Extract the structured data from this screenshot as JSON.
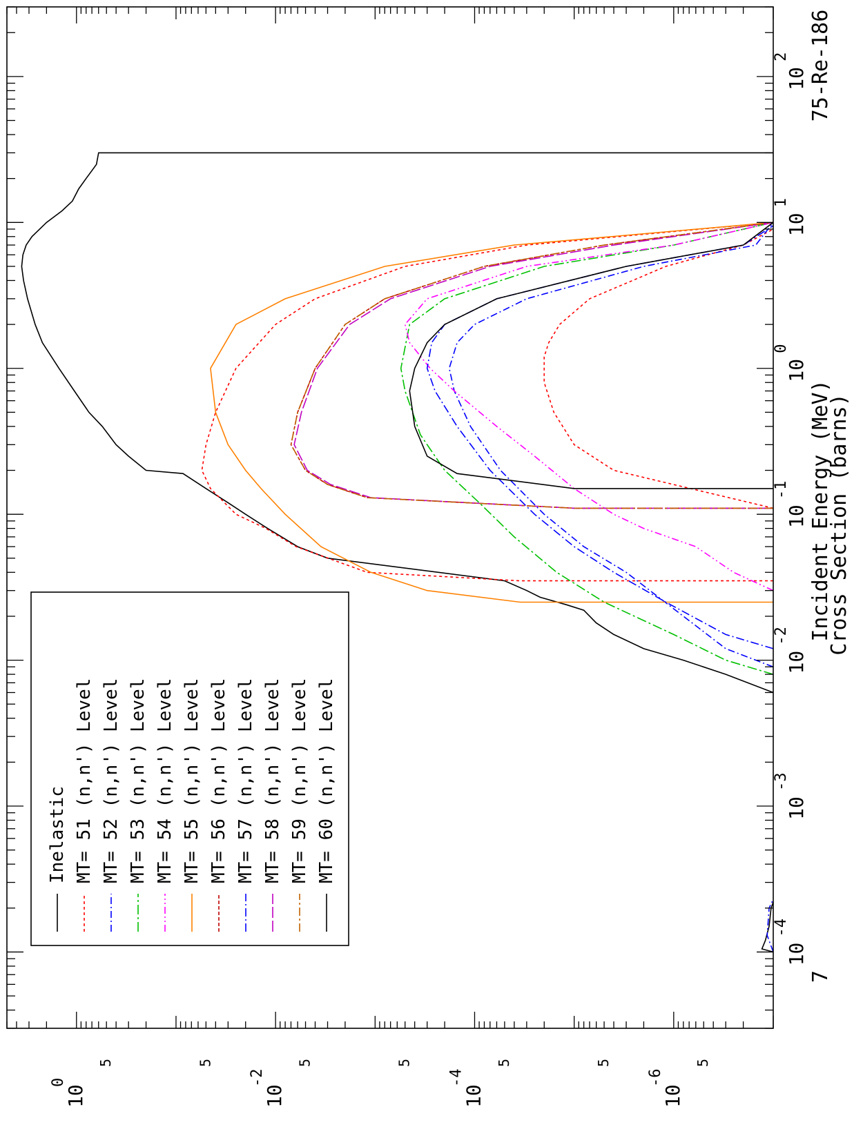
{
  "chart_data": {
    "type": "line",
    "title": "75-Re-186",
    "page_number": "7",
    "xlabel": "Incident Energy (MeV)",
    "ylabel": "Cross Section (barns)",
    "x_scale": "log",
    "y_scale": "log",
    "xlim": [
      3e-05,
      300
    ],
    "ylim": [
      1e-07,
      5
    ],
    "x_ticks": [
      {
        "value": 0.0001,
        "base": "10",
        "exp": "-4"
      },
      {
        "value": 0.001,
        "base": "10",
        "exp": "-3"
      },
      {
        "value": 0.01,
        "base": "10",
        "exp": "-2"
      },
      {
        "value": 0.1,
        "base": "10",
        "exp": "-1"
      },
      {
        "value": 1,
        "base": "10",
        "exp": "0"
      },
      {
        "value": 10,
        "base": "10",
        "exp": "1"
      },
      {
        "value": 100,
        "base": "10",
        "exp": "2"
      }
    ],
    "y_ticks": [
      {
        "value": 1,
        "base": "10",
        "exp": "0"
      },
      {
        "value": 0.01,
        "base": "10",
        "exp": "-2"
      },
      {
        "value": 0.0001,
        "base": "10",
        "exp": "-4"
      },
      {
        "value": 1e-06,
        "base": "10",
        "exp": "-6"
      }
    ],
    "y_minor_label": "5",
    "y_minor_label_values": [
      0.5,
      0.05,
      0.005,
      0.0005,
      5e-05,
      5e-06,
      5e-07
    ],
    "legend": {
      "placement": "top-left"
    },
    "series": [
      {
        "name": "Inelastic",
        "color": "#000000",
        "dash": "solid",
        "points": [
          [
            0.0001,
            1e-07
          ],
          [
            0.000105,
            1.3e-07
          ],
          [
            0.00012,
            1.2e-07
          ],
          [
            0.00015,
            1.1e-07
          ],
          [
            0.0002,
            1.05e-07
          ],
          [
            0.00022,
            1e-07
          ],
          null,
          [
            0.006,
            1e-07
          ],
          [
            0.008,
            3e-07
          ],
          [
            0.01,
            8e-07
          ],
          [
            0.012,
            2e-06
          ],
          [
            0.015,
            4e-06
          ],
          [
            0.018,
            6e-06
          ],
          [
            0.022,
            8e-06
          ],
          [
            0.024,
            1.2e-05
          ],
          [
            0.027,
            2.2e-05
          ],
          [
            0.03,
            3e-05
          ],
          [
            0.035,
            5e-05
          ],
          [
            0.05,
            0.003
          ],
          [
            0.06,
            0.006
          ],
          [
            0.08,
            0.012
          ],
          [
            0.1,
            0.02
          ],
          [
            0.12,
            0.03
          ],
          [
            0.15,
            0.05
          ],
          [
            0.19,
            0.085
          ],
          [
            0.2,
            0.2
          ],
          [
            0.25,
            0.3
          ],
          [
            0.3,
            0.4
          ],
          [
            0.4,
            0.55
          ],
          [
            0.5,
            0.75
          ],
          [
            0.7,
            1.05
          ],
          [
            1,
            1.5
          ],
          [
            1.5,
            2.2
          ],
          [
            2,
            2.6
          ],
          [
            3,
            3.1
          ],
          [
            4,
            3.4
          ],
          [
            5,
            3.55
          ],
          [
            6,
            3.45
          ],
          [
            7,
            3.2
          ],
          [
            8,
            2.8
          ],
          [
            10,
            2
          ],
          [
            12,
            1.4
          ],
          [
            14,
            1.1
          ],
          [
            17,
            0.95
          ],
          [
            20,
            0.8
          ],
          [
            25,
            0.63
          ],
          [
            30,
            0.6
          ],
          [
            30,
            1e-07
          ]
        ]
      },
      {
        "name": "MT= 51 (n,n') Level",
        "color": "#ff0000",
        "dash": "4,4",
        "points": [
          [
            0.035,
            1e-07
          ],
          [
            0.035,
            3.5e-05
          ],
          [
            0.04,
            0.0012
          ],
          [
            0.06,
            0.0062
          ],
          [
            0.08,
            0.0125
          ],
          [
            0.1,
            0.025
          ],
          [
            0.15,
            0.045
          ],
          [
            0.2,
            0.055
          ],
          [
            0.3,
            0.05
          ],
          [
            0.5,
            0.04
          ],
          [
            1,
            0.025
          ],
          [
            2,
            0.01
          ],
          [
            3,
            0.004
          ],
          [
            5,
            0.0005
          ],
          [
            7,
            3e-05
          ],
          [
            10,
            1e-07
          ],
          null,
          [
            0.11,
            1e-07
          ],
          [
            0.2,
            4e-06
          ],
          [
            0.3,
            1e-05
          ],
          [
            0.5,
            1.6e-05
          ],
          [
            0.8,
            2e-05
          ],
          [
            1.2,
            2e-05
          ],
          [
            1.5,
            1.8e-05
          ],
          [
            2,
            1.4e-05
          ],
          [
            3,
            7e-06
          ],
          [
            5,
            1.2e-06
          ],
          [
            7,
            2e-07
          ],
          [
            9,
            1e-07
          ]
        ]
      },
      {
        "name": "MT= 52 (n,n') Level",
        "color": "#0000ff",
        "dash": "10,4,2,4",
        "points": [
          [
            0.0001,
            1e-07
          ],
          [
            0.00013,
            1.15e-07
          ],
          [
            0.0002,
            1.1e-07
          ],
          [
            0.00023,
            1e-07
          ],
          null,
          [
            0.009,
            1e-07
          ],
          [
            0.012,
            3e-07
          ],
          [
            0.02,
            8e-07
          ],
          [
            0.04,
            3e-06
          ],
          [
            0.06,
            8e-06
          ],
          [
            0.1,
            2e-05
          ],
          [
            0.2,
            5.5e-05
          ],
          [
            0.4,
            0.00011
          ],
          [
            0.7,
            0.00016
          ],
          [
            1,
            0.00018
          ],
          [
            1.5,
            0.00015
          ],
          [
            2,
            0.0001
          ],
          [
            3,
            3e-05
          ],
          [
            5,
            2e-06
          ],
          [
            7,
            1.5e-07
          ],
          [
            10,
            1e-07
          ]
        ]
      },
      {
        "name": "MT= 53 (n,n') Level",
        "color": "#00c000",
        "dash": "14,4,3,4",
        "points": [
          [
            0.008,
            1e-07
          ],
          [
            0.01,
            3e-07
          ],
          [
            0.015,
            1e-06
          ],
          [
            0.025,
            5e-06
          ],
          [
            0.04,
            1.5e-05
          ],
          [
            0.07,
            4e-05
          ],
          [
            0.12,
            9e-05
          ],
          [
            0.2,
            0.0002
          ],
          [
            0.35,
            0.00035
          ],
          [
            0.7,
            0.0005
          ],
          [
            1,
            0.00055
          ],
          [
            2,
            0.00045
          ],
          [
            3,
            0.0002
          ],
          [
            5,
            2e-05
          ],
          [
            7,
            1e-06
          ],
          [
            10,
            1e-07
          ]
        ]
      },
      {
        "name": "MT= 54 (n,n') Level",
        "color": "#ff00ff",
        "dash": "10,4,2,4,2,4",
        "points": [
          [
            0.03,
            1e-07
          ],
          [
            0.04,
            2.5e-07
          ],
          [
            0.06,
            6e-07
          ],
          [
            0.08,
            2e-06
          ],
          [
            0.1,
            4e-06
          ],
          [
            0.15,
            1e-05
          ],
          [
            0.25,
            2.5e-05
          ],
          [
            0.4,
            6e-05
          ],
          [
            0.7,
            0.00016
          ],
          [
            1,
            0.00028
          ],
          [
            1.5,
            0.00045
          ],
          [
            2,
            0.0005
          ],
          [
            3,
            0.0003
          ],
          [
            5,
            3e-05
          ],
          [
            7,
            1e-06
          ],
          [
            10,
            1e-07
          ]
        ]
      },
      {
        "name": "MT= 55 (n,n') Level",
        "color": "#ff8000",
        "dash": "solid",
        "points": [
          [
            0.025,
            1e-07
          ],
          [
            0.025,
            3.5e-05
          ],
          [
            0.03,
            0.0003
          ],
          [
            0.04,
            0.0011
          ],
          [
            0.06,
            0.0035
          ],
          [
            0.1,
            0.008
          ],
          [
            0.15,
            0.014
          ],
          [
            0.2,
            0.02
          ],
          [
            0.3,
            0.03
          ],
          [
            0.5,
            0.04
          ],
          [
            1,
            0.045
          ],
          [
            2,
            0.025
          ],
          [
            3,
            0.008
          ],
          [
            5,
            0.0008
          ],
          [
            7,
            4e-05
          ],
          [
            10,
            1e-07
          ]
        ]
      },
      {
        "name": "MT= 56 (n,n') Level",
        "color": "#c00000",
        "dash": "5,3",
        "points": [
          [
            0.11,
            1e-07
          ],
          [
            0.11,
            1e-05
          ],
          [
            0.13,
            0.0012
          ],
          [
            0.16,
            0.003
          ],
          [
            0.2,
            0.005
          ],
          [
            0.3,
            0.007
          ],
          [
            0.5,
            0.006
          ],
          [
            1,
            0.004
          ],
          [
            2,
            0.002
          ],
          [
            3,
            0.0008
          ],
          [
            5,
            8e-05
          ],
          [
            7,
            5e-06
          ],
          [
            10,
            1e-07
          ]
        ]
      },
      {
        "name": "MT= 57 (n,n') Level",
        "color": "#0000ff",
        "dash": "12,4,2,4",
        "points": [
          [
            0.012,
            1e-07
          ],
          [
            0.015,
            3e-07
          ],
          [
            0.025,
            1.2e-06
          ],
          [
            0.04,
            4e-06
          ],
          [
            0.06,
            1e-05
          ],
          [
            0.1,
            2.5e-05
          ],
          [
            0.2,
            7e-05
          ],
          [
            0.4,
            0.00015
          ],
          [
            0.7,
            0.00025
          ],
          [
            1,
            0.0003
          ],
          [
            1.5,
            0.00027
          ],
          [
            2,
            0.0002
          ],
          [
            3,
            6e-05
          ],
          [
            5,
            3e-06
          ],
          [
            7,
            2e-07
          ],
          [
            9.5,
            1e-07
          ]
        ]
      },
      {
        "name": "MT= 58 (n,n') Level",
        "color": "#c000c0",
        "dash": "16,4",
        "points": [
          [
            0.11,
            1e-07
          ],
          [
            0.11,
            1e-05
          ],
          [
            0.13,
            0.0011
          ],
          [
            0.16,
            0.0028
          ],
          [
            0.2,
            0.0048
          ],
          [
            0.3,
            0.0065
          ],
          [
            0.5,
            0.0055
          ],
          [
            1,
            0.0038
          ],
          [
            2,
            0.0018
          ],
          [
            3,
            0.0007
          ],
          [
            5,
            7e-05
          ],
          [
            7,
            4e-06
          ],
          [
            10,
            1e-07
          ]
        ]
      },
      {
        "name": "MT= 59 (n,n') Level",
        "color": "#c06000",
        "dash": "12,4,3,4",
        "points": [
          [
            0.11,
            1e-07
          ],
          [
            0.11,
            1e-05
          ],
          [
            0.13,
            0.0012
          ],
          [
            0.16,
            0.003
          ],
          [
            0.2,
            0.005
          ],
          [
            0.3,
            0.007
          ],
          [
            0.5,
            0.006
          ],
          [
            1,
            0.004
          ],
          [
            2,
            0.002
          ],
          [
            3,
            0.0008
          ],
          [
            5,
            8e-05
          ],
          [
            7,
            5e-06
          ],
          [
            10,
            1e-07
          ]
        ]
      },
      {
        "name": "MT= 60 (n,n') Level",
        "color": "#000000",
        "dash": "solid",
        "points": [
          [
            0.15,
            1e-07
          ],
          [
            0.15,
            1e-05
          ],
          [
            0.19,
            0.00015
          ],
          [
            0.25,
            0.0003
          ],
          [
            0.4,
            0.0004
          ],
          [
            0.7,
            0.00045
          ],
          [
            1,
            0.0004
          ],
          [
            1.5,
            0.0003
          ],
          [
            2,
            0.0002
          ],
          [
            3,
            6e-05
          ],
          [
            5,
            3e-06
          ],
          [
            7,
            2e-07
          ],
          [
            10,
            1e-07
          ]
        ]
      }
    ]
  }
}
